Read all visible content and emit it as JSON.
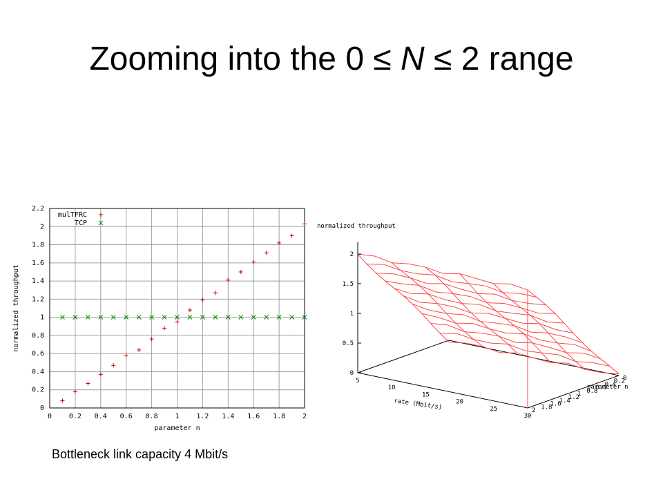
{
  "slide": {
    "title_prefix": "Zooming into the 0 ≤ ",
    "title_italic": "N",
    "title_suffix": " ≤ 2 range",
    "caption": "Bottleneck link capacity 4 Mbit/s"
  },
  "colors": {
    "multfrc": "#cc0000",
    "tcp": "#008800",
    "grid": "#a0a0a0",
    "surface": "#ff4444"
  },
  "chart_data": [
    {
      "type": "scatter",
      "title": "",
      "xlabel": "parameter n",
      "ylabel": "normalized throughput",
      "xlim": [
        0,
        2
      ],
      "ylim": [
        0,
        2.2
      ],
      "xticks": [
        "0",
        "0.2",
        "0.4",
        "0.6",
        "0.8",
        "1",
        "1.2",
        "1.4",
        "1.6",
        "1.8",
        "2"
      ],
      "yticks": [
        "0",
        "0.2",
        "0.4",
        "0.6",
        "0.8",
        "1",
        "1.2",
        "1.4",
        "1.6",
        "1.8",
        "2",
        "2.2"
      ],
      "grid": true,
      "legend_position": "top-left",
      "series": [
        {
          "name": "mulTFRC",
          "marker": "+",
          "x": [
            0.1,
            0.2,
            0.3,
            0.4,
            0.5,
            0.6,
            0.7,
            0.8,
            0.9,
            1.0,
            1.1,
            1.2,
            1.3,
            1.4,
            1.5,
            1.6,
            1.7,
            1.8,
            1.9,
            2.0
          ],
          "y": [
            0.08,
            0.18,
            0.27,
            0.37,
            0.47,
            0.58,
            0.64,
            0.76,
            0.88,
            0.95,
            1.08,
            1.19,
            1.27,
            1.41,
            1.5,
            1.61,
            1.71,
            1.82,
            1.9,
            2.03
          ]
        },
        {
          "name": "TCP",
          "marker": "x",
          "x": [
            0.1,
            0.2,
            0.3,
            0.4,
            0.5,
            0.6,
            0.7,
            0.8,
            0.9,
            1.0,
            1.1,
            1.2,
            1.3,
            1.4,
            1.5,
            1.6,
            1.7,
            1.8,
            1.9,
            2.0
          ],
          "y": [
            1,
            1,
            1,
            1,
            1,
            1,
            1,
            1,
            1,
            1,
            1,
            1,
            1,
            1,
            1,
            1,
            1,
            1,
            1,
            1
          ]
        }
      ]
    },
    {
      "type": "surface",
      "title": "",
      "zlabel": "normalized throughput",
      "xlabel": "rate (Mbit/s)",
      "ylabel": "parameter n",
      "xticks": [
        "5",
        "10",
        "15",
        "20",
        "25",
        "30"
      ],
      "yticks": [
        "0",
        "0.2",
        "0.4",
        "0.6",
        "0.8",
        "1",
        "1.2",
        "1.4",
        "1.6",
        "1.8",
        "2"
      ],
      "zticks": [
        "0",
        "0.5",
        "1",
        "1.5",
        "2"
      ],
      "xlim": [
        5,
        30
      ],
      "ylim": [
        0,
        2
      ],
      "zlim": [
        0,
        2.2
      ]
    }
  ]
}
